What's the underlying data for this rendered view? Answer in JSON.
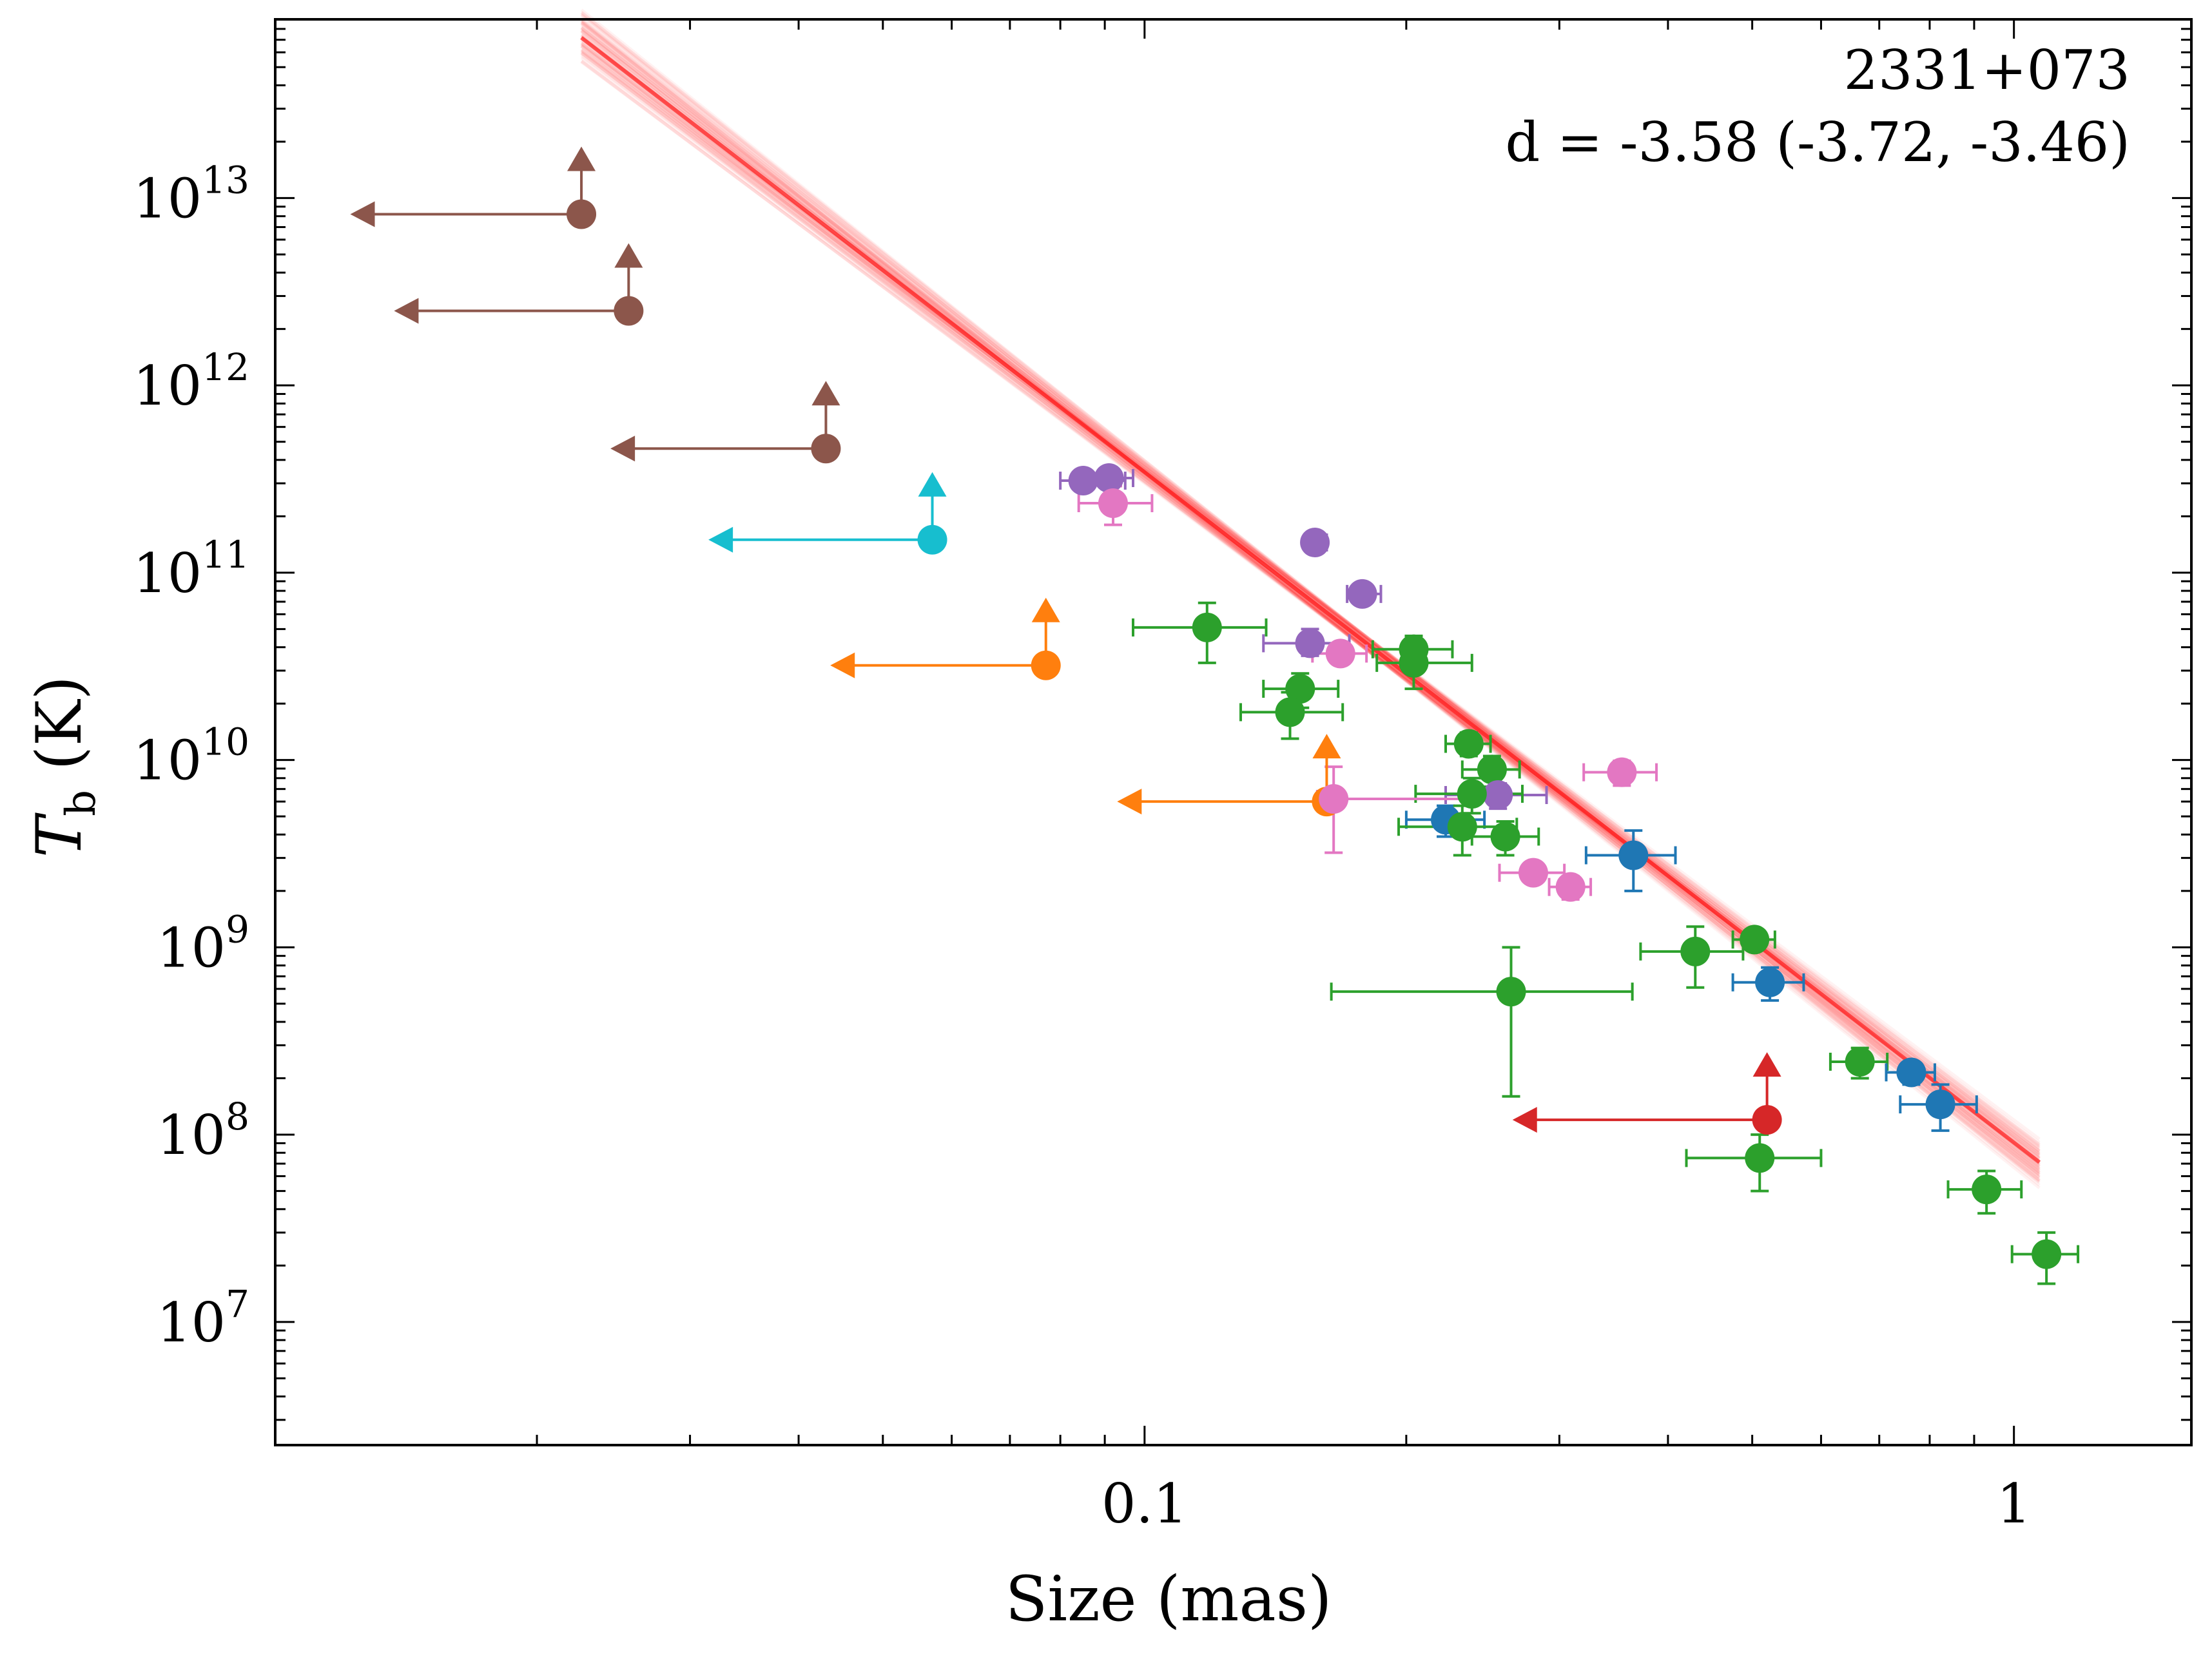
{
  "chart_data": {
    "type": "scatter",
    "title": "",
    "xlabel": "Size (mas)",
    "ylabel": "T_b (K)",
    "ylabel_main": "T",
    "ylabel_sub": "b",
    "ylabel_unit": " (K)",
    "xscale": "log",
    "yscale": "log",
    "xlim": [
      0.01,
      1.6
    ],
    "ylim": [
      2200000.0,
      90000000000000.0
    ],
    "x_ticks": [
      {
        "value": 0.1,
        "label": "0.1"
      },
      {
        "value": 1,
        "label": "1"
      }
    ],
    "y_ticks": [
      {
        "value": 10000000.0,
        "base": "10",
        "exp": "7"
      },
      {
        "value": 100000000.0,
        "base": "10",
        "exp": "8"
      },
      {
        "value": 1000000000.0,
        "base": "10",
        "exp": "9"
      },
      {
        "value": 10000000000.0,
        "base": "10",
        "exp": "10"
      },
      {
        "value": 100000000000.0,
        "base": "10",
        "exp": "11"
      },
      {
        "value": 1000000000000.0,
        "base": "10",
        "exp": "12"
      },
      {
        "value": 10000000000000.0,
        "base": "10",
        "exp": "13"
      }
    ],
    "annotation": {
      "source": "2331+073",
      "fit_text": "d = -3.58 (-3.72, -3.46)"
    },
    "fit": {
      "slope": -3.58,
      "slope_low": -3.72,
      "slope_high": -3.46,
      "pivot_size": 0.18,
      "pivot_tb": 42000000000.0,
      "x_range": [
        0.0225,
        1.07
      ],
      "color": "#ff0000"
    },
    "colors": {
      "blue": "#1f77b4",
      "orange": "#ff7f0e",
      "green": "#2ca02c",
      "red": "#d62728",
      "purple": "#9467bd",
      "brown": "#8c564b",
      "pink": "#e377c2",
      "cyan": "#17becf"
    },
    "upper_limits": [
      {
        "series": "brown",
        "size": 0.0225,
        "tb": 8200000000000.0,
        "arrow_to": 0.0122
      },
      {
        "series": "brown",
        "size": 0.0255,
        "tb": 2500000000000.0,
        "arrow_to": 0.0137
      },
      {
        "series": "brown",
        "size": 0.043,
        "tb": 460000000000.0,
        "arrow_to": 0.0243
      },
      {
        "series": "cyan",
        "size": 0.057,
        "tb": 150000000000.0,
        "arrow_to": 0.0315
      },
      {
        "series": "orange",
        "size": 0.077,
        "tb": 32000000000.0,
        "arrow_to": 0.0435
      },
      {
        "series": "orange",
        "size": 0.162,
        "tb": 6000000000.0,
        "arrow_to": 0.093
      },
      {
        "series": "red",
        "size": 0.52,
        "tb": 120000000.0,
        "arrow_to": 0.265
      }
    ],
    "points": [
      {
        "series": "purple",
        "size": 0.085,
        "tb": 310000000000.0,
        "x_err": [
          0.08,
          0.095
        ],
        "tb_err": [
          280000000000.0,
          340000000000.0
        ]
      },
      {
        "series": "purple",
        "size": 0.091,
        "tb": 320000000000.0,
        "x_err": [
          0.086,
          0.097
        ],
        "tb_err": [
          290000000000.0,
          350000000000.0
        ]
      },
      {
        "series": "pink",
        "size": 0.092,
        "tb": 235000000000.0,
        "x_err": [
          0.084,
          0.102
        ],
        "tb_err": [
          180000000000.0,
          290000000000.0
        ]
      },
      {
        "series": "purple",
        "size": 0.157,
        "tb": 145000000000.0,
        "x_err": [
          0.153,
          0.162
        ],
        "tb_err": [
          135000000000.0,
          155000000000.0
        ]
      },
      {
        "series": "purple",
        "size": 0.178,
        "tb": 77000000000.0,
        "x_err": [
          0.171,
          0.187
        ],
        "tb_err": [
          70000000000.0,
          85000000000.0
        ]
      },
      {
        "series": "green",
        "size": 0.118,
        "tb": 51000000000.0,
        "x_err": [
          0.097,
          0.138
        ],
        "tb_err": [
          33000000000.0,
          69000000000.0
        ]
      },
      {
        "series": "purple",
        "size": 0.155,
        "tb": 42000000000.0,
        "x_err": [
          0.137,
          0.172
        ],
        "tb_err": [
          36000000000.0,
          50000000000.0
        ]
      },
      {
        "series": "pink",
        "size": 0.168,
        "tb": 37000000000.0,
        "x_err": [
          0.156,
          0.18
        ],
        "tb_err": [
          33000000000.0,
          41000000000.0
        ]
      },
      {
        "series": "green",
        "size": 0.204,
        "tb": 39000000000.0,
        "x_err": [
          0.183,
          0.226
        ],
        "tb_err": [
          32000000000.0,
          46000000000.0
        ]
      },
      {
        "series": "green",
        "size": 0.204,
        "tb": 33000000000.0,
        "x_err": [
          0.185,
          0.238
        ],
        "tb_err": [
          24000000000.0,
          40000000000.0
        ]
      },
      {
        "series": "green",
        "size": 0.151,
        "tb": 24000000000.0,
        "x_err": [
          0.137,
          0.167
        ],
        "tb_err": [
          19000000000.0,
          29000000000.0
        ]
      },
      {
        "series": "green",
        "size": 0.147,
        "tb": 18000000000.0,
        "x_err": [
          0.129,
          0.169
        ],
        "tb_err": [
          13000000000.0,
          23000000000.0
        ]
      },
      {
        "series": "green",
        "size": 0.236,
        "tb": 12200000000.0,
        "x_err": [
          0.222,
          0.25
        ],
        "tb_err": [
          10500000000.0,
          14000000000.0
        ]
      },
      {
        "series": "green",
        "size": 0.251,
        "tb": 8900000000.0,
        "x_err": [
          0.232,
          0.27
        ],
        "tb_err": [
          7200000000.0,
          10500000000.0
        ]
      },
      {
        "series": "purple",
        "size": 0.255,
        "tb": 6500000000.0,
        "x_err": [
          0.222,
          0.29
        ],
        "tb_err": [
          5500000000.0,
          7500000000.0
        ]
      },
      {
        "series": "green",
        "size": 0.238,
        "tb": 6600000000.0,
        "x_err": [
          0.205,
          0.272
        ],
        "tb_err": [
          5200000000.0,
          8000000000.0
        ]
      },
      {
        "series": "pink",
        "size": 0.165,
        "tb": 6200000000.0,
        "x_err": [
          0.158,
          0.255
        ],
        "tb_err": [
          3200000000.0,
          9200000000.0
        ]
      },
      {
        "series": "blue",
        "size": 0.222,
        "tb": 4800000000.0,
        "x_err": [
          0.2,
          0.246
        ],
        "tb_err": [
          3900000000.0,
          5700000000.0
        ]
      },
      {
        "series": "green",
        "size": 0.232,
        "tb": 4400000000.0,
        "x_err": [
          0.196,
          0.268
        ],
        "tb_err": [
          3100000000.0,
          5700000000.0
        ]
      },
      {
        "series": "green",
        "size": 0.26,
        "tb": 3900000000.0,
        "x_err": [
          0.238,
          0.284
        ],
        "tb_err": [
          3100000000.0,
          4700000000.0
        ]
      },
      {
        "series": "blue",
        "size": 0.365,
        "tb": 3100000000.0,
        "x_err": [
          0.322,
          0.408
        ],
        "tb_err": [
          2000000000.0,
          4200000000.0
        ]
      },
      {
        "series": "pink",
        "size": 0.354,
        "tb": 8600000000.0,
        "x_err": [
          0.32,
          0.388
        ],
        "tb_err": [
          7300000000.0,
          9900000000.0
        ]
      },
      {
        "series": "pink",
        "size": 0.28,
        "tb": 2500000000.0,
        "x_err": [
          0.256,
          0.304
        ],
        "tb_err": [
          2200000000.0,
          2800000000.0
        ]
      },
      {
        "series": "pink",
        "size": 0.309,
        "tb": 2100000000.0,
        "x_err": [
          0.292,
          0.326
        ],
        "tb_err": [
          1800000000.0,
          2400000000.0
        ]
      },
      {
        "series": "green",
        "size": 0.503,
        "tb": 1100000000.0,
        "x_err": [
          0.475,
          0.531
        ],
        "tb_err": [
          1000000000.0,
          1200000000.0
        ]
      },
      {
        "series": "green",
        "size": 0.43,
        "tb": 950000000.0,
        "x_err": [
          0.372,
          0.488
        ],
        "tb_err": [
          610000000.0,
          1290000000.0
        ]
      },
      {
        "series": "blue",
        "size": 0.524,
        "tb": 650000000.0,
        "x_err": [
          0.475,
          0.573
        ],
        "tb_err": [
          520000000.0,
          780000000.0
        ]
      },
      {
        "series": "green",
        "size": 0.264,
        "tb": 580000000.0,
        "x_err": [
          0.164,
          0.364
        ],
        "tb_err": [
          160000000.0,
          1000000000.0
        ]
      },
      {
        "series": "green",
        "size": 0.665,
        "tb": 245000000.0,
        "x_err": [
          0.615,
          0.715
        ],
        "tb_err": [
          200000000.0,
          290000000.0
        ]
      },
      {
        "series": "blue",
        "size": 0.762,
        "tb": 215000000.0,
        "x_err": [
          0.713,
          0.811
        ],
        "tb_err": [
          185000000.0,
          245000000.0
        ]
      },
      {
        "series": "blue",
        "size": 0.823,
        "tb": 145000000.0,
        "x_err": [
          0.74,
          0.906
        ],
        "tb_err": [
          105000000.0,
          185000000.0
        ]
      },
      {
        "series": "green",
        "size": 0.51,
        "tb": 75000000.0,
        "x_err": [
          0.42,
          0.6
        ],
        "tb_err": [
          50000000.0,
          100000000.0
        ]
      },
      {
        "series": "green",
        "size": 0.93,
        "tb": 51000000.0,
        "x_err": [
          0.84,
          1.02
        ],
        "tb_err": [
          38000000.0,
          64000000.0
        ]
      },
      {
        "series": "green",
        "size": 1.09,
        "tb": 23000000.0,
        "x_err": [
          0.995,
          1.185
        ],
        "tb_err": [
          16000000.0,
          30000000.0
        ]
      }
    ]
  }
}
